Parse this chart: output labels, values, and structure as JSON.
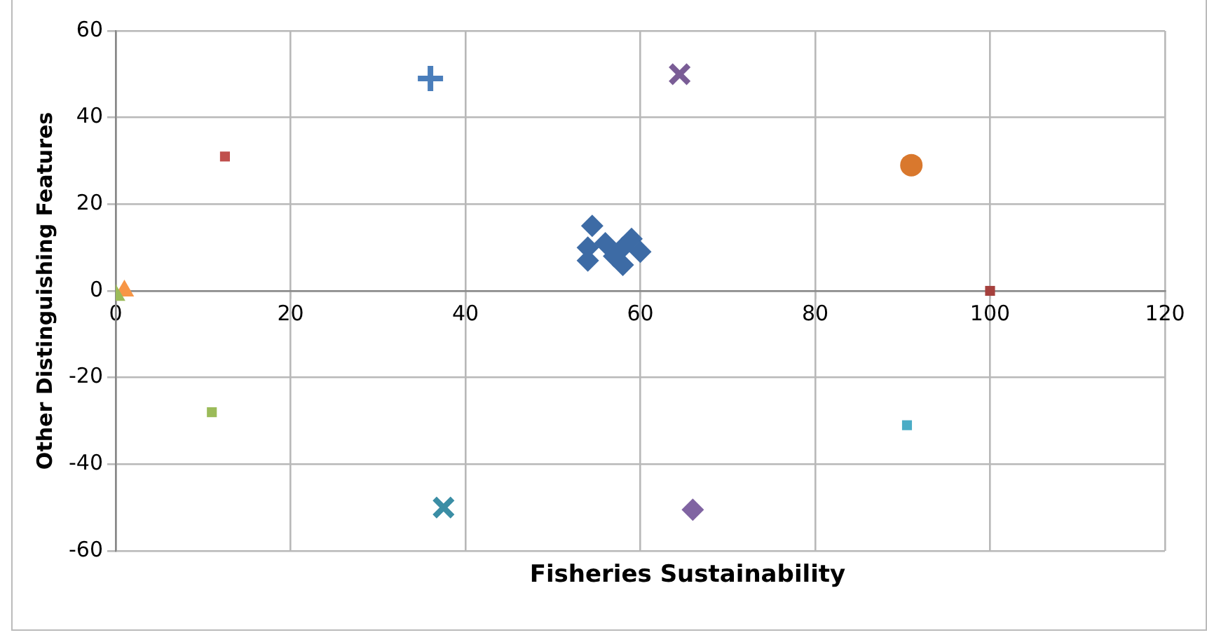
{
  "chart_data": {
    "type": "scatter",
    "xlabel": "Fisheries Sustainability",
    "ylabel": "Other Distinguishing Features",
    "xlim": [
      0,
      120
    ],
    "xticks": [
      0,
      20,
      40,
      60,
      80,
      100,
      120
    ],
    "ylim": [
      -60,
      60
    ],
    "yticks": [
      -60,
      -40,
      -20,
      0,
      20,
      40,
      60
    ],
    "grid": true,
    "legend": false,
    "series": [
      {
        "color": "#3d6ba5",
        "marker": "diamond",
        "x": [
          54.5,
          54,
          54,
          56,
          57,
          58,
          59,
          60,
          58
        ],
        "values": [
          15,
          10,
          7,
          11,
          8,
          6,
          12,
          9,
          10
        ]
      },
      {
        "color": "#4a7ebb",
        "marker": "plus",
        "x": [
          36
        ],
        "values": [
          49
        ]
      },
      {
        "color": "#c0504d",
        "marker": "square",
        "x": [
          12.5
        ],
        "values": [
          31
        ]
      },
      {
        "color": "#7a5d96",
        "marker": "x",
        "x": [
          64.5
        ],
        "values": [
          50
        ]
      },
      {
        "color": "#9bbb59",
        "marker": "triangle",
        "x": [
          0
        ],
        "values": [
          -1
        ]
      },
      {
        "color": "#f79646",
        "marker": "triangle",
        "x": [
          1
        ],
        "values": [
          0
        ]
      },
      {
        "color": "#d9782d",
        "marker": "circle",
        "x": [
          91
        ],
        "values": [
          29
        ]
      },
      {
        "color": "#a5403d",
        "marker": "square",
        "x": [
          100
        ],
        "values": [
          0
        ]
      },
      {
        "color": "#9bbb59",
        "marker": "square",
        "x": [
          11
        ],
        "values": [
          -28
        ]
      },
      {
        "color": "#3b8ea5",
        "marker": "x",
        "x": [
          37.5
        ],
        "values": [
          -50
        ]
      },
      {
        "color": "#8064a2",
        "marker": "diamond",
        "x": [
          66
        ],
        "values": [
          -50.5
        ]
      },
      {
        "color": "#4bacc6",
        "marker": "square",
        "x": [
          90.5
        ],
        "values": [
          -31
        ]
      }
    ]
  }
}
